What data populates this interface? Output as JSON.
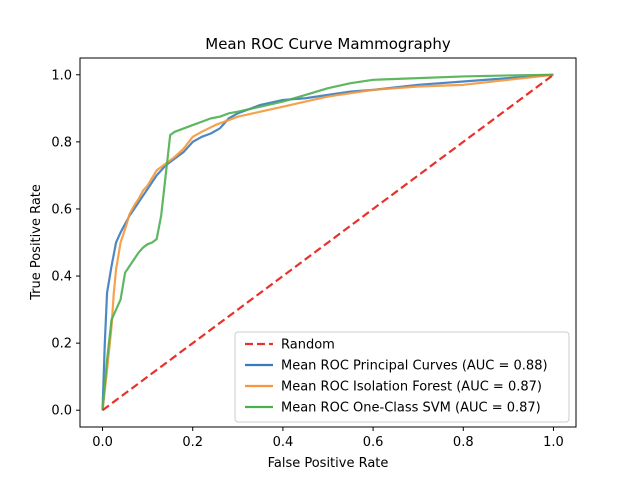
{
  "chart_data": {
    "type": "line",
    "title": "Mean ROC Curve Mammography",
    "xlabel": "False Positive Rate",
    "ylabel": "True Positive Rate",
    "xlim": [
      -0.05,
      1.05
    ],
    "ylim": [
      -0.05,
      1.05
    ],
    "xticks": [
      "0.0",
      "0.2",
      "0.4",
      "0.6",
      "0.8",
      "1.0"
    ],
    "yticks": [
      "0.0",
      "0.2",
      "0.4",
      "0.6",
      "0.8",
      "1.0"
    ],
    "xtick_values": [
      0,
      0.2,
      0.4,
      0.6,
      0.8,
      1.0
    ],
    "ytick_values": [
      0,
      0.2,
      0.4,
      0.6,
      0.8,
      1.0
    ],
    "grid": false,
    "legend_position": "lower right",
    "series": [
      {
        "name": "Random",
        "color": "#e8312b",
        "style": "dashed",
        "x": [
          0,
          1
        ],
        "y": [
          0,
          1
        ]
      },
      {
        "name": "Mean ROC Principal Curves (AUC = 0.88)",
        "color": "#3a7bbf",
        "style": "solid",
        "x": [
          0,
          0.005,
          0.01,
          0.02,
          0.03,
          0.04,
          0.05,
          0.06,
          0.07,
          0.08,
          0.09,
          0.1,
          0.12,
          0.14,
          0.16,
          0.18,
          0.2,
          0.22,
          0.24,
          0.26,
          0.28,
          0.3,
          0.35,
          0.4,
          0.45,
          0.5,
          0.55,
          0.6,
          0.7,
          0.8,
          0.9,
          1.0
        ],
        "y": [
          0,
          0.2,
          0.35,
          0.43,
          0.5,
          0.53,
          0.555,
          0.58,
          0.6,
          0.62,
          0.64,
          0.66,
          0.7,
          0.73,
          0.75,
          0.77,
          0.8,
          0.815,
          0.825,
          0.84,
          0.87,
          0.885,
          0.91,
          0.925,
          0.93,
          0.94,
          0.95,
          0.955,
          0.97,
          0.98,
          0.99,
          1.0
        ]
      },
      {
        "name": "Mean ROC Isolation Forest (AUC = 0.87)",
        "color": "#f5973a",
        "style": "solid",
        "x": [
          0,
          0.01,
          0.02,
          0.025,
          0.03,
          0.04,
          0.05,
          0.06,
          0.07,
          0.08,
          0.09,
          0.1,
          0.12,
          0.14,
          0.16,
          0.18,
          0.2,
          0.22,
          0.25,
          0.3,
          0.35,
          0.4,
          0.45,
          0.5,
          0.55,
          0.6,
          0.7,
          0.8,
          0.9,
          1.0
        ],
        "y": [
          0,
          0.12,
          0.25,
          0.35,
          0.42,
          0.5,
          0.54,
          0.585,
          0.61,
          0.63,
          0.655,
          0.67,
          0.715,
          0.735,
          0.755,
          0.78,
          0.815,
          0.83,
          0.85,
          0.875,
          0.89,
          0.905,
          0.92,
          0.935,
          0.945,
          0.955,
          0.965,
          0.97,
          0.985,
          1.0
        ]
      },
      {
        "name": "Mean ROC One-Class SVM (AUC = 0.87)",
        "color": "#4caf50",
        "style": "solid",
        "x": [
          0,
          0.01,
          0.02,
          0.03,
          0.04,
          0.05,
          0.06,
          0.07,
          0.08,
          0.09,
          0.1,
          0.11,
          0.12,
          0.13,
          0.14,
          0.15,
          0.16,
          0.18,
          0.2,
          0.22,
          0.24,
          0.26,
          0.28,
          0.3,
          0.35,
          0.4,
          0.45,
          0.5,
          0.55,
          0.6,
          0.7,
          0.8,
          0.9,
          1.0
        ],
        "y": [
          0,
          0.15,
          0.27,
          0.3,
          0.33,
          0.41,
          0.43,
          0.45,
          0.47,
          0.485,
          0.495,
          0.5,
          0.51,
          0.58,
          0.7,
          0.82,
          0.83,
          0.84,
          0.85,
          0.86,
          0.87,
          0.875,
          0.885,
          0.89,
          0.905,
          0.92,
          0.94,
          0.96,
          0.975,
          0.985,
          0.99,
          0.995,
          0.998,
          1.0
        ]
      }
    ]
  }
}
